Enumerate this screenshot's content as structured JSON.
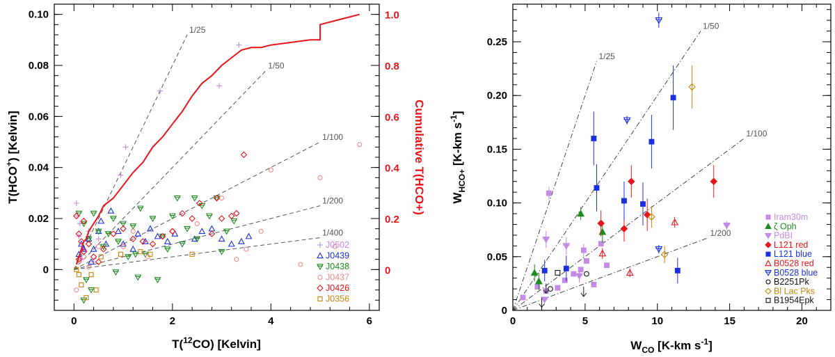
{
  "chart_data": [
    {
      "type": "scatter",
      "xlabel_prefix": "T(",
      "xlabel_sup": "12",
      "xlabel_suffix": "CO) [Kelvin]",
      "ylabel_prefix": "T(HCO",
      "ylabel_sup": "+",
      "ylabel_suffix": ") [Kelvin]",
      "y2label": "Cumulative T(HCO+)",
      "xlim": [
        -0.4,
        6.2
      ],
      "ylim": [
        -0.016,
        0.104
      ],
      "y2lim": [
        -0.16,
        1.04
      ],
      "x_ticks": [
        "0",
        "2",
        "4",
        "6"
      ],
      "y_ticks": [
        "0",
        "0.02",
        "0.04",
        "0.06",
        "0.08",
        "0.10"
      ],
      "y2_ticks": [
        "0",
        "0.2",
        "0.4",
        "0.6",
        "0.8",
        "1.0"
      ],
      "colors": {
        "cumulative": "#e8141a",
        "axis2": "#e8141a"
      },
      "ratio_lines": [
        {
          "label": "1/25",
          "ratio": 0.04,
          "xmax": 2.3
        },
        {
          "label": "1/50",
          "ratio": 0.02,
          "xmax": 3.9
        },
        {
          "label": "1/100",
          "ratio": 0.01,
          "xmax": 5.0
        },
        {
          "label": "1/200",
          "ratio": 0.005,
          "xmax": 5.0
        },
        {
          "label": "1/400",
          "ratio": 0.0025,
          "xmax": 5.0
        }
      ],
      "series": [
        {
          "name": "J0502",
          "color": "#c58ae8",
          "marker": "plus",
          "points": [
            [
              0.05,
              0.026
            ],
            [
              0.08,
              0.021
            ],
            [
              0.12,
              0.018
            ],
            [
              0.1,
              0.013
            ],
            [
              0.2,
              0.008
            ],
            [
              0.15,
              0.004
            ],
            [
              0.3,
              0.015
            ],
            [
              0.5,
              0.012
            ],
            [
              0.95,
              0.037
            ],
            [
              1.05,
              0.048
            ],
            [
              1.75,
              0.07
            ],
            [
              2.95,
              0.072
            ],
            [
              3.35,
              0.088
            ],
            [
              0.4,
              0.003
            ]
          ]
        },
        {
          "name": "J0439",
          "color": "#1a2fe0",
          "marker": "triangle-up",
          "points": [
            [
              0.1,
              0.006
            ],
            [
              0.15,
              0.01
            ],
            [
              0.2,
              0.008
            ],
            [
              0.3,
              0.012
            ],
            [
              0.4,
              0.008
            ],
            [
              0.5,
              0.015
            ],
            [
              0.55,
              0.019
            ],
            [
              0.65,
              0.01
            ],
            [
              0.75,
              0.023
            ],
            [
              0.9,
              0.015
            ],
            [
              1.0,
              0.01
            ],
            [
              1.2,
              0.008
            ],
            [
              1.3,
              0.014
            ],
            [
              1.45,
              0.011
            ],
            [
              1.55,
              0.016
            ],
            [
              1.7,
              0.013
            ],
            [
              1.9,
              0.011
            ],
            [
              2.05,
              0.014
            ],
            [
              2.45,
              0.012
            ],
            [
              2.6,
              0.015
            ],
            [
              2.8,
              0.016
            ],
            [
              3.0,
              0.012
            ],
            [
              3.2,
              0.01
            ],
            [
              3.4,
              0.011
            ],
            [
              3.55,
              0.013
            ],
            [
              0.35,
              0.003
            ]
          ]
        },
        {
          "name": "J0438",
          "color": "#1c8c1c",
          "marker": "triangle-down",
          "points": [
            [
              0.1,
              0.022
            ],
            [
              0.2,
              0.018
            ],
            [
              0.3,
              0.012
            ],
            [
              0.4,
              0.022
            ],
            [
              0.5,
              0.015
            ],
            [
              0.6,
              0.009
            ],
            [
              0.7,
              0.014
            ],
            [
              0.8,
              0.02
            ],
            [
              0.9,
              0.011
            ],
            [
              1.0,
              0.018
            ],
            [
              1.1,
              0.005
            ],
            [
              1.2,
              0.017
            ],
            [
              1.35,
              0.024
            ],
            [
              1.45,
              0.006
            ],
            [
              1.6,
              0.02
            ],
            [
              1.7,
              -0.004
            ],
            [
              1.8,
              0.013
            ],
            [
              1.9,
              0.008
            ],
            [
              2.0,
              0.021
            ],
            [
              2.1,
              0.028
            ],
            [
              2.2,
              0.01
            ],
            [
              2.3,
              0.016
            ],
            [
              2.45,
              0.028
            ],
            [
              2.6,
              0.025
            ],
            [
              2.75,
              0.021
            ],
            [
              2.9,
              0.028
            ],
            [
              3.0,
              0.007
            ],
            [
              3.1,
              0.015
            ],
            [
              3.25,
              0.019
            ],
            [
              0.2,
              -0.012
            ],
            [
              0.25,
              -0.004
            ],
            [
              0.35,
              -0.008
            ],
            [
              0.85,
              -0.001
            ],
            [
              1.25,
              0.006
            ],
            [
              2.5,
              0.012
            ],
            [
              1.3,
              -0.003
            ]
          ]
        },
        {
          "name": "J0437",
          "color": "#f28a8a",
          "marker": "circle",
          "points": [
            [
              0.05,
              -0.008
            ],
            [
              0.1,
              0.003
            ],
            [
              0.2,
              0.005
            ],
            [
              0.3,
              0.001
            ],
            [
              0.5,
              0.009
            ],
            [
              1.0,
              0.009
            ],
            [
              1.5,
              0.005
            ],
            [
              2.0,
              0.015
            ],
            [
              2.5,
              0.018
            ],
            [
              3.0,
              0.028
            ],
            [
              3.5,
              0.008
            ],
            [
              3.8,
              0.015
            ],
            [
              4.0,
              0.039
            ],
            [
              4.6,
              0.002
            ],
            [
              5.0,
              0.036
            ],
            [
              5.3,
              0.009
            ],
            [
              5.8,
              0.049
            ],
            [
              3.3,
              0.004
            ],
            [
              1.2,
              0.015
            ]
          ]
        },
        {
          "name": "J0426",
          "color": "#e8141a",
          "marker": "diamond",
          "points": [
            [
              0.05,
              0.021
            ],
            [
              0.1,
              0.014
            ],
            [
              0.15,
              0.011
            ],
            [
              0.2,
              0.007
            ],
            [
              0.3,
              0.01
            ],
            [
              0.4,
              0.005
            ],
            [
              0.5,
              0.003
            ],
            [
              0.6,
              0.008
            ],
            [
              0.8,
              0.014
            ],
            [
              1.0,
              0.016
            ],
            [
              1.2,
              0.012
            ],
            [
              1.4,
              0.011
            ],
            [
              1.6,
              0.01
            ],
            [
              1.8,
              0.013
            ],
            [
              2.0,
              0.015
            ],
            [
              2.2,
              0.022
            ],
            [
              2.4,
              0.02
            ],
            [
              2.55,
              0.026
            ],
            [
              2.8,
              0.014
            ],
            [
              2.9,
              0.028
            ],
            [
              3.0,
              0.02
            ],
            [
              3.2,
              0.021
            ],
            [
              3.3,
              0.022
            ],
            [
              3.45,
              0.045
            ],
            [
              0.1,
              0.004
            ],
            [
              0.2,
              0.019
            ]
          ]
        },
        {
          "name": "J0356",
          "color": "#c8830a",
          "marker": "square",
          "points": [
            [
              0.05,
              0.0
            ],
            [
              0.1,
              -0.002
            ],
            [
              0.15,
              -0.006
            ],
            [
              0.25,
              -0.011
            ],
            [
              0.35,
              -0.002
            ],
            [
              0.45,
              -0.008
            ],
            [
              0.55,
              0.005
            ],
            [
              0.95,
              0.006
            ],
            [
              1.35,
              0.007
            ],
            [
              1.55,
              0.006
            ],
            [
              2.4,
              0.006
            ]
          ]
        }
      ],
      "cumulative": {
        "name": "Cumulative T(HCO+)",
        "x": [
          0.05,
          0.1,
          0.15,
          0.2,
          0.25,
          0.3,
          0.4,
          0.5,
          0.6,
          0.8,
          1.0,
          1.2,
          1.4,
          1.6,
          1.8,
          2.0,
          2.2,
          2.4,
          2.6,
          2.8,
          3.0,
          3.2,
          3.4,
          3.6,
          3.8,
          4.0,
          4.4,
          4.8,
          5.0,
          5.0,
          5.4,
          5.8
        ],
        "y": [
          0.02,
          0.05,
          0.08,
          0.11,
          0.12,
          0.15,
          0.18,
          0.21,
          0.25,
          0.28,
          0.33,
          0.38,
          0.42,
          0.48,
          0.52,
          0.57,
          0.62,
          0.68,
          0.73,
          0.76,
          0.8,
          0.83,
          0.86,
          0.87,
          0.87,
          0.88,
          0.89,
          0.9,
          0.9,
          0.96,
          0.98,
          1.0
        ]
      }
    },
    {
      "type": "scatter",
      "xlabel_main": "W",
      "xlabel_sub": "CO",
      "xlabel_suffix": " [K-km s",
      "xlabel_sup": "-1",
      "xlabel_close": "]",
      "ylabel_main": "W",
      "ylabel_sub": "HCO+",
      "ylabel_suffix": " [K-km s",
      "ylabel_sup": "-1",
      "ylabel_close": "]",
      "xlim": [
        0,
        22
      ],
      "ylim": [
        0,
        0.285
      ],
      "x_ticks": [
        "0",
        "5",
        "10",
        "15",
        "20"
      ],
      "y_ticks": [
        "0",
        "0.05",
        "0.10",
        "0.15",
        "0.20",
        "0.25"
      ],
      "ratio_lines": [
        {
          "label": "1/25",
          "ratio": 0.04,
          "xmax": 5.8
        },
        {
          "label": "1/50",
          "ratio": 0.02,
          "xmax": 13.0
        },
        {
          "label": "1/100",
          "ratio": 0.01,
          "xmax": 16.0
        },
        {
          "label": "1/200",
          "ratio": 0.005,
          "xmax": 13.5
        }
      ],
      "series": [
        {
          "name": "Iram30m",
          "color": "#c58ae8",
          "marker": "square-filled",
          "points": [
            [
              0.7,
              0.012,
              0
            ],
            [
              1.7,
              0.022,
              0
            ],
            [
              2.3,
              0.018,
              0
            ],
            [
              2.5,
              0.109,
              0.006
            ],
            [
              3.6,
              0.028,
              0
            ],
            [
              4.2,
              0.034,
              0
            ],
            [
              4.7,
              0.038,
              0
            ],
            [
              4.9,
              0.056,
              0.006
            ],
            [
              5.1,
              0.046,
              0
            ],
            [
              6.1,
              0.062,
              0
            ],
            [
              6.5,
              0.042,
              0
            ],
            [
              5.6,
              0.024,
              0
            ],
            [
              3.1,
              0.021,
              0
            ]
          ]
        },
        {
          "name": "ζ Oph",
          "color": "#1c8c1c",
          "marker": "triangle-up-filled",
          "points": [
            [
              1.5,
              0.035,
              0.008
            ],
            [
              1.8,
              0.027,
              0.008
            ],
            [
              4.7,
              0.09,
              0.006
            ],
            [
              6.2,
              0.073,
              0.01
            ]
          ]
        },
        {
          "name": "PdBI",
          "color": "#c58ae8",
          "marker": "triangle-down-filled",
          "points": [
            [
              2.3,
              0.066,
              0.008
            ],
            [
              3.7,
              0.06,
              0.008
            ],
            [
              4.6,
              0.032,
              0.006
            ],
            [
              14.8,
              0.079,
              0.004
            ],
            [
              2.2,
              0.01,
              0
            ]
          ]
        },
        {
          "name": "L121 red",
          "color": "#e8141a",
          "marker": "diamond-filled",
          "points": [
            [
              6.1,
              0.081,
              0.012
            ],
            [
              7.7,
              0.076,
              0.012
            ],
            [
              8.2,
              0.12,
              0.015
            ],
            [
              9.3,
              0.089,
              0.015
            ],
            [
              13.9,
              0.12,
              0.015
            ]
          ]
        },
        {
          "name": "L121 blue",
          "color": "#1a2fe0",
          "marker": "square-filled",
          "points": [
            [
              2.2,
              0.037,
              0.01
            ],
            [
              3.7,
              0.039,
              0.012
            ],
            [
              5.6,
              0.16,
              0.025
            ],
            [
              5.8,
              0.114,
              0.022
            ],
            [
              7.7,
              0.102,
              0.018
            ],
            [
              9.0,
              0.099,
              0.02
            ],
            [
              9.6,
              0.157,
              0.025
            ],
            [
              11.1,
              0.198,
              0.03
            ],
            [
              11.4,
              0.037,
              0.012
            ]
          ]
        },
        {
          "name": "B0528 red",
          "color": "#e8141a",
          "marker": "triangle-up",
          "points": [
            [
              6.2,
              0.053,
              0.005
            ],
            [
              8.1,
              0.035,
              0.004
            ],
            [
              11.2,
              0.082,
              0.005
            ]
          ]
        },
        {
          "name": "B0528 blue",
          "color": "#1a2fe0",
          "marker": "triangle-down",
          "points": [
            [
              7.9,
              0.177,
              0.004
            ],
            [
              10.1,
              0.27,
              0.007
            ],
            [
              10.1,
              0.057,
              0.004
            ]
          ]
        },
        {
          "name": "B2251Pk",
          "color": "#111111",
          "marker": "circle",
          "points": [
            [
              2.6,
              0.02,
              0
            ],
            [
              5.1,
              0.034,
              0
            ]
          ]
        },
        {
          "name": "Bl Lac Pks",
          "color": "#c8830a",
          "marker": "diamond",
          "points": [
            [
              9.6,
              0.087,
              0.01
            ],
            [
              12.4,
              0.208,
              0.02
            ],
            [
              10.5,
              0.052,
              0.008
            ]
          ]
        },
        {
          "name": "B1954Epk",
          "color": "#111111",
          "marker": "square",
          "points": [
            [
              3.1,
              0.035,
              0
            ]
          ]
        }
      ],
      "upper_limits": [
        [
          2.3,
          0.025
        ],
        [
          4.9,
          0.022
        ],
        [
          2.0,
          0.012
        ]
      ]
    }
  ]
}
